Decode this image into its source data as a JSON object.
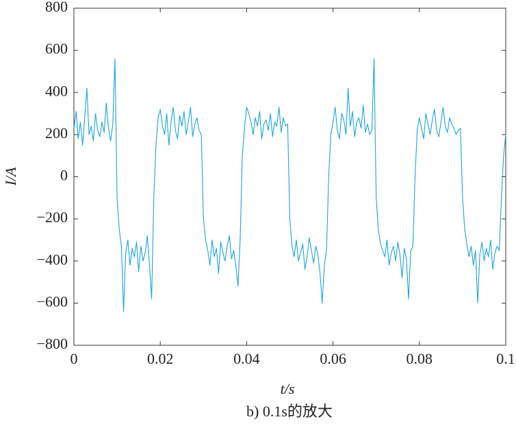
{
  "chart_data": {
    "type": "line",
    "caption": "b) 0.1s的放大",
    "xlabel": "t/s",
    "ylabel": "I/A",
    "color": "#1aa3dc",
    "xlim": [
      0,
      0.1
    ],
    "xticks": [
      0,
      0.02,
      0.04,
      0.06,
      0.08,
      0.1
    ],
    "ylim": [
      -800,
      800
    ],
    "yticks": [
      {
        "value": -800,
        "label": "−800"
      },
      {
        "value": -600,
        "label": "−600"
      },
      {
        "value": -400,
        "label": "−400"
      },
      {
        "value": -200,
        "label": "−200"
      },
      0,
      200,
      400,
      600,
      800
    ],
    "x": [
      0,
      0.0005,
      0.001,
      0.0015,
      0.002,
      0.0025,
      0.003,
      0.0035,
      0.004,
      0.0045,
      0.005,
      0.0055,
      0.006,
      0.0065,
      0.007,
      0.0075,
      0.008,
      0.0085,
      0.009,
      0.0095,
      0.01,
      0.0105,
      0.011,
      0.0115,
      0.012,
      0.0125,
      0.013,
      0.0135,
      0.014,
      0.0145,
      0.015,
      0.0155,
      0.016,
      0.0165,
      0.017,
      0.0175,
      0.018,
      0.0185,
      0.019,
      0.0195,
      0.02,
      0.0205,
      0.021,
      0.0215,
      0.022,
      0.0225,
      0.023,
      0.0235,
      0.024,
      0.0245,
      0.025,
      0.0255,
      0.026,
      0.0265,
      0.027,
      0.0275,
      0.028,
      0.0285,
      0.029,
      0.0295,
      0.03,
      0.0305,
      0.031,
      0.0315,
      0.032,
      0.0325,
      0.033,
      0.0335,
      0.034,
      0.0345,
      0.035,
      0.0355,
      0.036,
      0.0365,
      0.037,
      0.0375,
      0.038,
      0.0385,
      0.039,
      0.0395,
      0.04,
      0.0405,
      0.041,
      0.0415,
      0.042,
      0.0425,
      0.043,
      0.0435,
      0.044,
      0.0445,
      0.045,
      0.0455,
      0.046,
      0.0465,
      0.047,
      0.0475,
      0.048,
      0.0485,
      0.049,
      0.0495,
      0.05,
      0.0505,
      0.051,
      0.0515,
      0.052,
      0.0525,
      0.053,
      0.0535,
      0.054,
      0.0545,
      0.055,
      0.0555,
      0.056,
      0.0565,
      0.057,
      0.0575,
      0.058,
      0.0585,
      0.059,
      0.0595,
      0.06,
      0.0605,
      0.061,
      0.0615,
      0.062,
      0.0625,
      0.063,
      0.0635,
      0.064,
      0.0645,
      0.065,
      0.0655,
      0.066,
      0.0665,
      0.067,
      0.0675,
      0.068,
      0.0685,
      0.069,
      0.0695,
      0.07,
      0.0705,
      0.071,
      0.0715,
      0.072,
      0.0725,
      0.073,
      0.0735,
      0.074,
      0.0745,
      0.075,
      0.0755,
      0.076,
      0.0765,
      0.077,
      0.0775,
      0.078,
      0.0785,
      0.079,
      0.0795,
      0.08,
      0.0805,
      0.081,
      0.0815,
      0.082,
      0.0825,
      0.083,
      0.0835,
      0.084,
      0.0845,
      0.085,
      0.0855,
      0.086,
      0.0865,
      0.087,
      0.0875,
      0.088,
      0.0885,
      0.089,
      0.0895,
      0.09,
      0.0905,
      0.091,
      0.0915,
      0.092,
      0.0925,
      0.093,
      0.0935,
      0.094,
      0.0945,
      0.095,
      0.0955,
      0.096,
      0.0965,
      0.097,
      0.0975,
      0.098,
      0.0985,
      0.099,
      0.0995,
      0.1
    ],
    "values": [
      230,
      310,
      180,
      260,
      150,
      280,
      420,
      200,
      240,
      170,
      300,
      220,
      190,
      260,
      210,
      350,
      230,
      170,
      250,
      560,
      -100,
      -250,
      -330,
      -640,
      -360,
      -300,
      -420,
      -340,
      -380,
      -310,
      -450,
      -330,
      -400,
      -360,
      -280,
      -420,
      -580,
      -100,
      150,
      280,
      320,
      240,
      200,
      300,
      150,
      260,
      330,
      220,
      180,
      290,
      240,
      310,
      200,
      260,
      330,
      190,
      250,
      280,
      220,
      200,
      -200,
      -300,
      -350,
      -420,
      -300,
      -380,
      -340,
      -460,
      -310,
      -360,
      -400,
      -330,
      -280,
      -390,
      -350,
      -420,
      -520,
      -300,
      100,
      230,
      330,
      300,
      260,
      200,
      280,
      240,
      310,
      180,
      250,
      270,
      220,
      300,
      190,
      260,
      240,
      330,
      210,
      280,
      240,
      250,
      -200,
      -330,
      -380,
      -300,
      -400,
      -360,
      -320,
      -440,
      -380,
      -290,
      -350,
      -410,
      -330,
      -370,
      -460,
      -600,
      -420,
      -350,
      0,
      200,
      260,
      330,
      220,
      180,
      300,
      270,
      200,
      420,
      240,
      310,
      190,
      260,
      280,
      230,
      340,
      210,
      250,
      200,
      220,
      560,
      -100,
      -250,
      -320,
      -350,
      -380,
      -300,
      -420,
      -360,
      -330,
      -400,
      -310,
      -370,
      -480,
      -340,
      -390,
      -580,
      -350,
      -330,
      0,
      220,
      280,
      230,
      180,
      300,
      250,
      200,
      270,
      320,
      220,
      190,
      260,
      330,
      240,
      210,
      280,
      250,
      230,
      200,
      220,
      230,
      -100,
      -250,
      -320,
      -380,
      -330,
      -420,
      -350,
      -600,
      -370,
      -310,
      -400,
      -340,
      -380,
      -300,
      -440,
      -360,
      -330,
      -350,
      -100,
      100,
      200
    ]
  }
}
